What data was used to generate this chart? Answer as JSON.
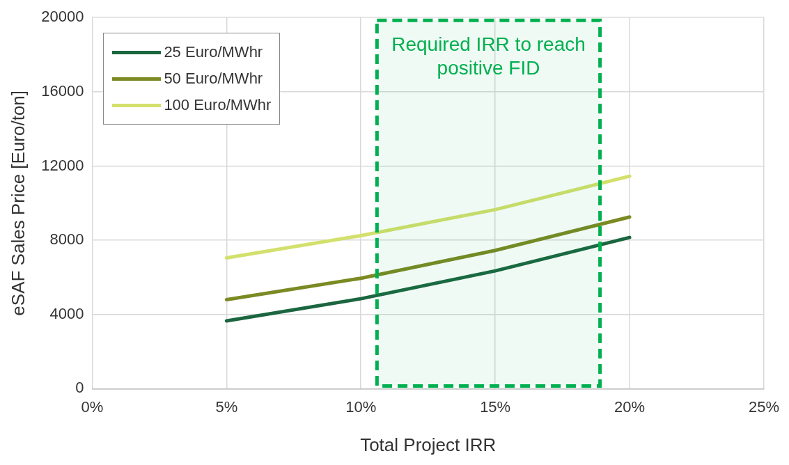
{
  "chart_data": {
    "type": "line",
    "xlabel": "Total Project IRR",
    "ylabel": "eSAF Sales Price [Euro/ton]",
    "x": [
      5,
      10,
      15,
      20
    ],
    "series": [
      {
        "name": "25 Euro/MWhr",
        "color": "#1b6640",
        "values": [
          3650,
          4850,
          6350,
          8150
        ]
      },
      {
        "name": "50 Euro/MWhr",
        "color": "#7b8a22",
        "values": [
          4800,
          5950,
          7450,
          9250
        ]
      },
      {
        "name": "100 Euro/MWhr",
        "color": "#d3e06c",
        "values": [
          7050,
          8250,
          9650,
          11450
        ]
      }
    ],
    "xlim": [
      0,
      25
    ],
    "xticks": [
      {
        "value": 0,
        "label": "0%"
      },
      {
        "value": 5,
        "label": "5%"
      },
      {
        "value": 10,
        "label": "10%"
      },
      {
        "value": 15,
        "label": "15%"
      },
      {
        "value": 20,
        "label": "20%"
      },
      {
        "value": 25,
        "label": "25%"
      }
    ],
    "ylim": [
      0,
      20000
    ],
    "yticks": [
      0,
      4000,
      8000,
      12000,
      16000,
      20000
    ],
    "bands": [
      {
        "axis": "x",
        "from": 10.6,
        "to": 18.9,
        "label": "Required IRR to reach positive FID",
        "color": "#00b050"
      }
    ],
    "grid": true,
    "legend": "top left",
    "marker": "none",
    "line_style": "solid"
  }
}
